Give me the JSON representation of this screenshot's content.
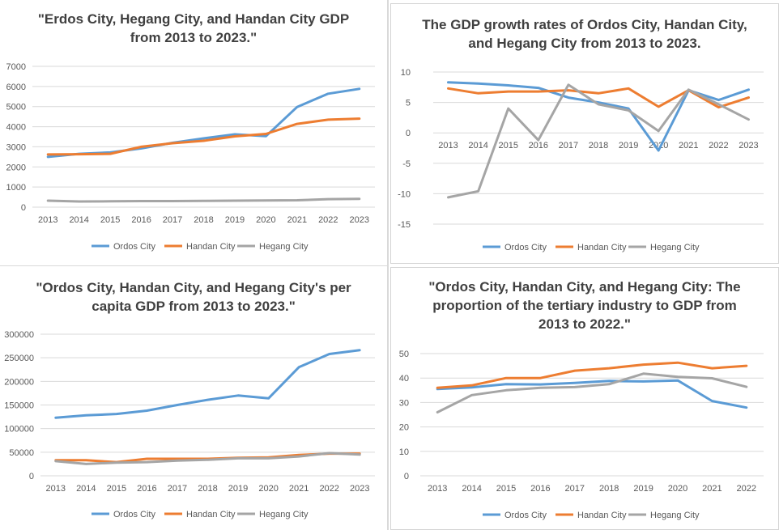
{
  "colors": {
    "ordos": "#5b9bd5",
    "handan": "#ed7d31",
    "hegang": "#a5a5a5",
    "grid": "#d9d9d9",
    "text": "#595959"
  },
  "chart_data": [
    {
      "type": "line",
      "title": "\"Erdos City, Hegang City, and Handan City GDP\nfrom 2013 to 2023.\"",
      "categories": [
        "2013",
        "2014",
        "2015",
        "2016",
        "2017",
        "2018",
        "2019",
        "2020",
        "2021",
        "2022",
        "2023"
      ],
      "yticks": [
        "0",
        "1000",
        "2000",
        "3000",
        "4000",
        "5000",
        "6000",
        "7000"
      ],
      "ylim": [
        0,
        7000
      ],
      "grid": true,
      "legend": "bottom",
      "series": [
        {
          "name": "Ordos City",
          "color": "#5b9bd5",
          "values": [
            2500,
            2650,
            2720,
            2920,
            3200,
            3420,
            3620,
            3530,
            4980,
            5640,
            5880
          ]
        },
        {
          "name": "Handan City",
          "color": "#ed7d31",
          "values": [
            2620,
            2630,
            2650,
            3000,
            3180,
            3300,
            3520,
            3640,
            4140,
            4350,
            4400
          ]
        },
        {
          "name": "Hegang City",
          "color": "#a5a5a5",
          "values": [
            320,
            280,
            290,
            300,
            300,
            310,
            320,
            330,
            340,
            400,
            410
          ]
        }
      ]
    },
    {
      "type": "line",
      "title": "The GDP growth rates of Ordos City, Handan City,\nand Hegang City from 2013 to 2023.",
      "categories": [
        "2013",
        "2014",
        "2015",
        "2016",
        "2017",
        "2018",
        "2019",
        "2020",
        "2021",
        "2022",
        "2023"
      ],
      "yticks": [
        "-15",
        "-10",
        "-5",
        "0",
        "5",
        "10"
      ],
      "ylim": [
        -15,
        10
      ],
      "grid": true,
      "legend": "bottom",
      "series": [
        {
          "name": "Ordos City",
          "color": "#5b9bd5",
          "values": [
            8.3,
            8.1,
            7.8,
            7.4,
            5.8,
            5.0,
            4.0,
            -2.9,
            7.0,
            5.4,
            7.1
          ]
        },
        {
          "name": "Handan City",
          "color": "#ed7d31",
          "values": [
            7.3,
            6.5,
            6.8,
            6.8,
            7.0,
            6.5,
            7.3,
            4.3,
            7.0,
            4.2,
            5.8
          ]
        },
        {
          "name": "Hegang City",
          "color": "#a5a5a5",
          "values": [
            -10.6,
            -9.6,
            4.0,
            -1.2,
            7.9,
            4.7,
            3.7,
            0.3,
            7.1,
            4.7,
            2.2
          ]
        }
      ]
    },
    {
      "type": "line",
      "title": "\"Ordos City, Handan City, and Hegang City's per\ncapita GDP from 2013 to 2023.\"",
      "categories": [
        "2013",
        "2014",
        "2015",
        "2016",
        "2017",
        "2018",
        "2019",
        "2020",
        "2021",
        "2022",
        "2023"
      ],
      "yticks": [
        "0",
        "50000",
        "100000",
        "150000",
        "200000",
        "250000",
        "300000"
      ],
      "ylim": [
        0,
        300000
      ],
      "grid": true,
      "legend": "bottom",
      "series": [
        {
          "name": "Ordos City",
          "color": "#5b9bd5",
          "values": [
            123000,
            128000,
            131000,
            138000,
            150000,
            161000,
            170000,
            164000,
            230000,
            258000,
            266000
          ]
        },
        {
          "name": "Handan City",
          "color": "#ed7d31",
          "values": [
            33000,
            33000,
            29000,
            36000,
            36000,
            36000,
            38000,
            39000,
            44000,
            47000,
            47000
          ]
        },
        {
          "name": "Hegang City",
          "color": "#a5a5a5",
          "values": [
            31000,
            25000,
            28000,
            29000,
            32000,
            34000,
            37000,
            37000,
            41000,
            48000,
            45000
          ]
        }
      ]
    },
    {
      "type": "line",
      "title": "\"Ordos City, Handan City, and Hegang City: The\nproportion of the tertiary industry to GDP from\n2013 to 2022.\"",
      "categories": [
        "2013",
        "2014",
        "2015",
        "2016",
        "2017",
        "2018",
        "2019",
        "2020",
        "2021",
        "2022"
      ],
      "yticks": [
        "0",
        "10",
        "20",
        "30",
        "40",
        "50"
      ],
      "ylim": [
        0,
        50
      ],
      "grid": true,
      "legend": "bottom",
      "series": [
        {
          "name": "Ordos City",
          "color": "#5b9bd5",
          "values": [
            35.5,
            36.2,
            37.5,
            37.4,
            38.0,
            38.8,
            38.6,
            39.0,
            30.6,
            27.9
          ]
        },
        {
          "name": "Handan City",
          "color": "#ed7d31",
          "values": [
            36.0,
            37.0,
            40.0,
            40.0,
            43.0,
            44.0,
            45.5,
            46.3,
            44.0,
            45.0
          ]
        },
        {
          "name": "Hegang City",
          "color": "#a5a5a5",
          "values": [
            26.0,
            33.0,
            35.0,
            36.0,
            36.3,
            37.5,
            41.8,
            40.5,
            39.9,
            36.4
          ]
        }
      ]
    }
  ]
}
